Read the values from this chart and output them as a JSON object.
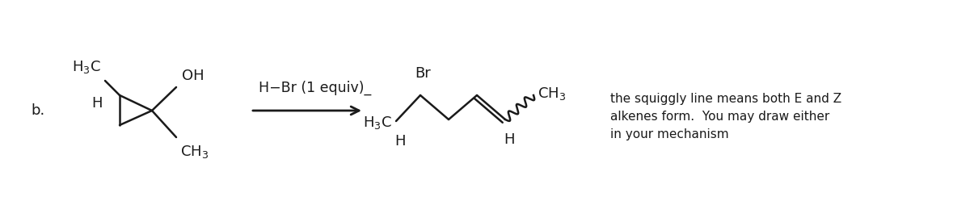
{
  "bg_color": "#ffffff",
  "label_b": "b.",
  "text_note_lines": [
    "the squiggly line means both E and Z",
    "alkenes form.  You may draw either",
    "in your mechanism"
  ],
  "text_fontsize": 11,
  "chem_fontsize": 13
}
